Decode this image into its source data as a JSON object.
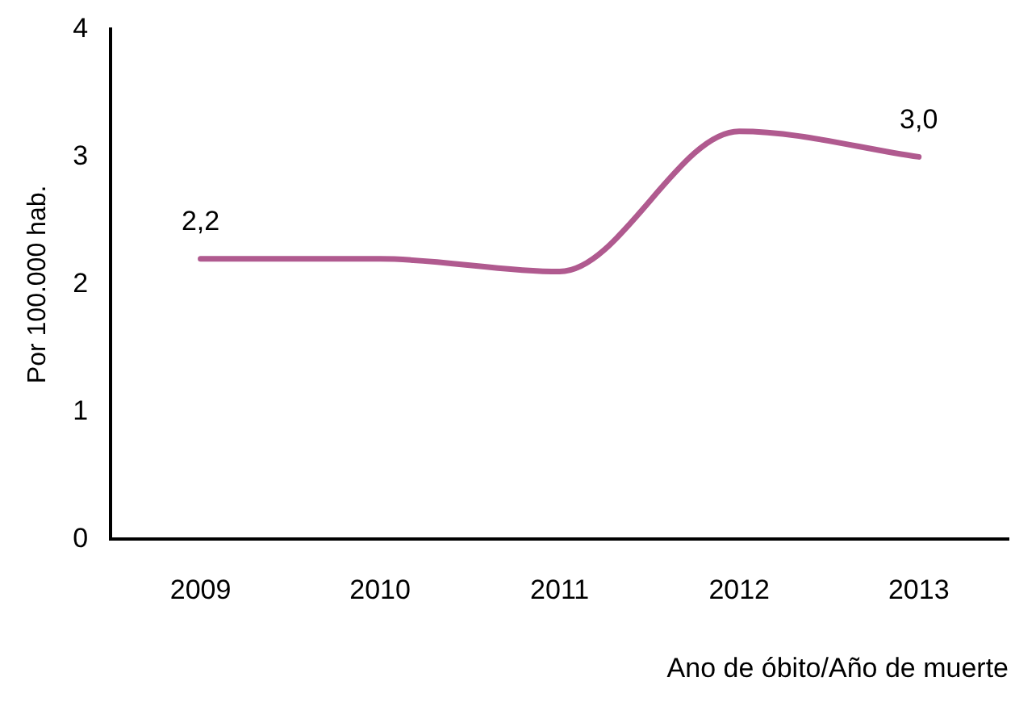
{
  "chart_data": {
    "type": "line",
    "xlabel": "Ano de óbito/Año de muerte",
    "ylabel": "Por 100.000 hab.",
    "categories": [
      "2009",
      "2010",
      "2011",
      "2012",
      "2013"
    ],
    "series": [
      {
        "color": "#b05a8f",
        "values": [
          2.2,
          2.2,
          2.1,
          3.2,
          3.0
        ],
        "value_labels": [
          "2,2",
          null,
          null,
          null,
          "3,0"
        ]
      }
    ],
    "ylim": [
      0,
      4
    ],
    "yticks": [
      0,
      1,
      2,
      3,
      4
    ],
    "grid": false,
    "legend": false,
    "marker": "none"
  }
}
